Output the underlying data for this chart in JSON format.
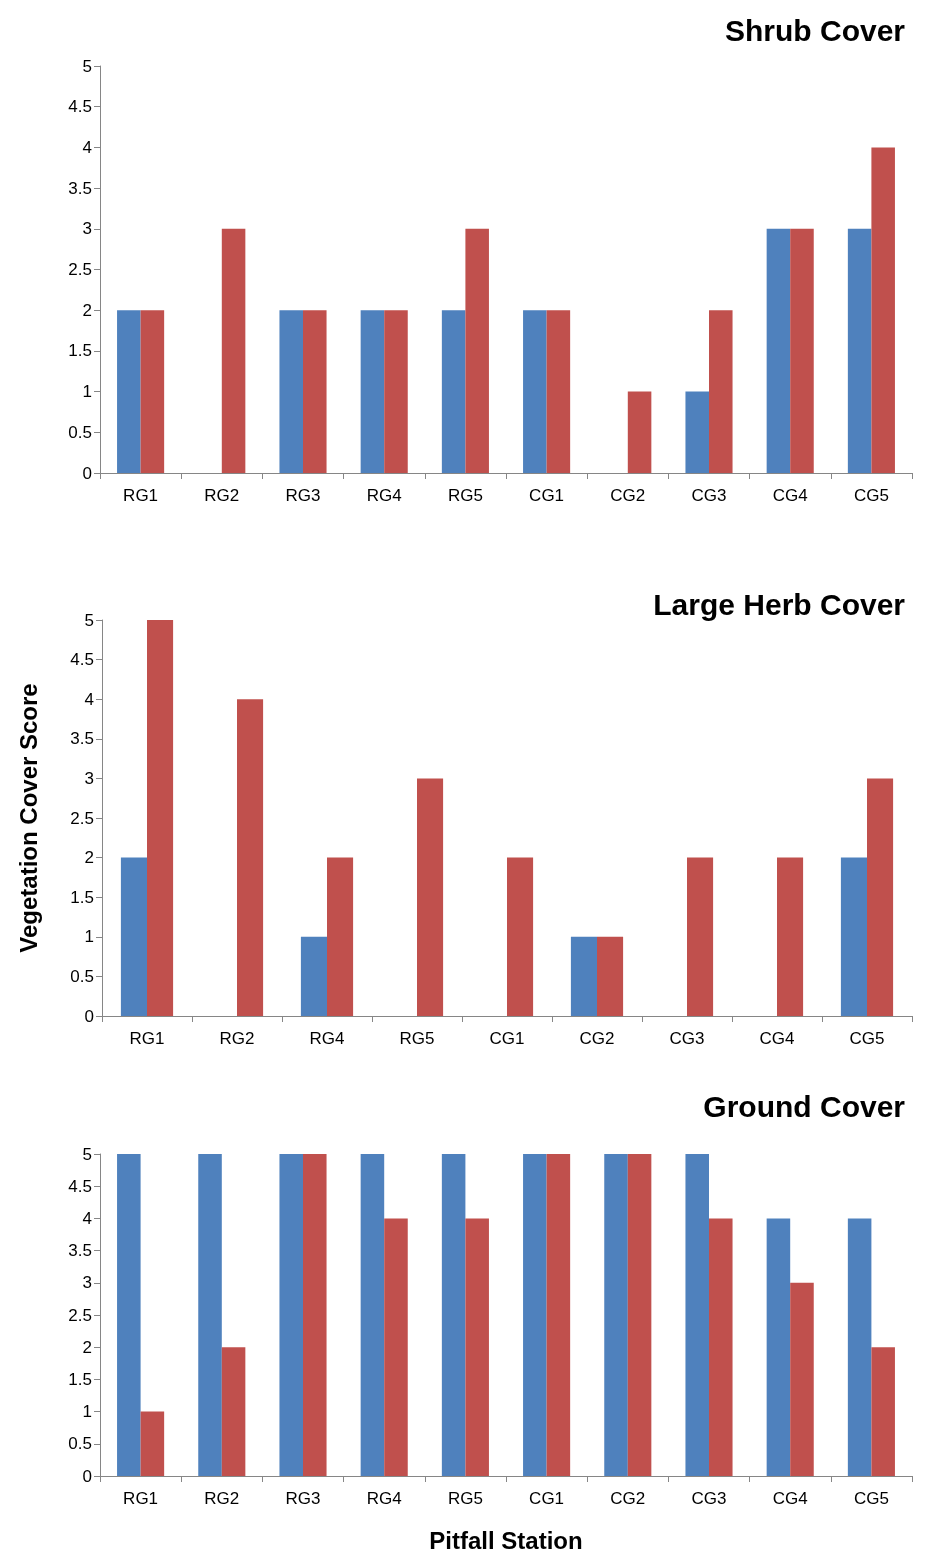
{
  "chart_data": [
    {
      "type": "bar",
      "title": "Shrub Cover",
      "categories": [
        "RG1",
        "RG2",
        "RG3",
        "RG4",
        "RG5",
        "CG1",
        "CG2",
        "CG3",
        "CG4",
        "CG5"
      ],
      "series": [
        {
          "color": "#4f81bd",
          "values": [
            2,
            0,
            2,
            2,
            2,
            2,
            0,
            1,
            3,
            3
          ]
        },
        {
          "color": "#c0504d",
          "values": [
            2,
            3,
            2,
            2,
            3,
            2,
            1,
            2,
            3,
            4
          ]
        }
      ],
      "ylim": [
        0,
        5
      ],
      "yticks": [
        0,
        0.5,
        1,
        1.5,
        2,
        2.5,
        3,
        3.5,
        4,
        4.5,
        5
      ]
    },
    {
      "type": "bar",
      "title": "Large Herb Cover",
      "ylabel": "Vegetation Cover Score",
      "categories": [
        "RG1",
        "RG2",
        "RG4",
        "RG5",
        "CG1",
        "CG2",
        "CG3",
        "CG4",
        "CG5"
      ],
      "series": [
        {
          "color": "#4f81bd",
          "values": [
            2,
            0,
            1,
            0,
            0,
            1,
            0,
            0,
            2
          ]
        },
        {
          "color": "#c0504d",
          "values": [
            5,
            4,
            2,
            3,
            2,
            1,
            2,
            2,
            3
          ]
        }
      ],
      "ylim": [
        0,
        5
      ],
      "yticks": [
        0,
        0.5,
        1,
        1.5,
        2,
        2.5,
        3,
        3.5,
        4,
        4.5,
        5
      ]
    },
    {
      "type": "bar",
      "title": "Ground Cover",
      "xlabel": "Pitfall Station",
      "categories": [
        "RG1",
        "RG2",
        "RG3",
        "RG4",
        "RG5",
        "CG1",
        "CG2",
        "CG3",
        "CG4",
        "CG5"
      ],
      "series": [
        {
          "color": "#4f81bd",
          "values": [
            5,
            5,
            5,
            5,
            5,
            5,
            5,
            5,
            4,
            4
          ]
        },
        {
          "color": "#c0504d",
          "values": [
            1,
            2,
            5,
            4,
            4,
            5,
            5,
            4,
            3,
            2
          ]
        }
      ],
      "ylim": [
        0,
        5
      ],
      "yticks": [
        0,
        0.5,
        1,
        1.5,
        2,
        2.5,
        3,
        3.5,
        4,
        4.5,
        5
      ]
    }
  ]
}
